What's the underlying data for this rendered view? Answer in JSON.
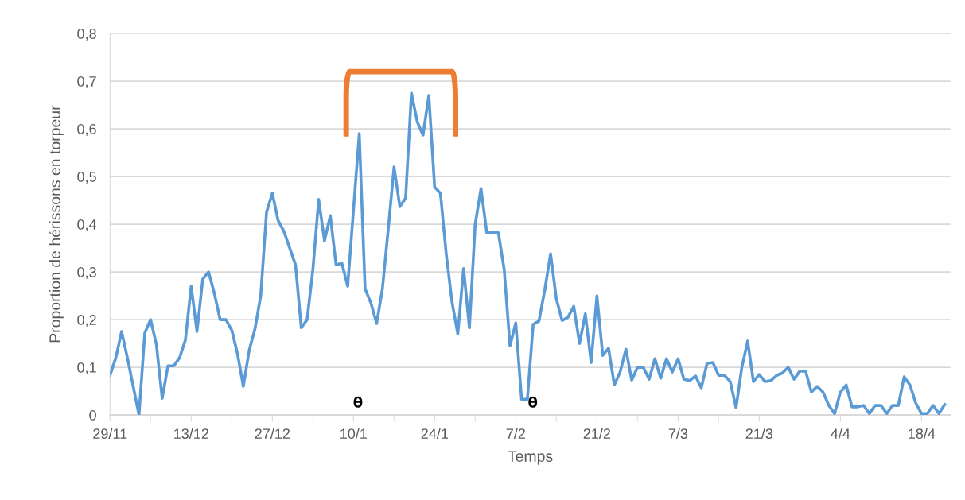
{
  "chart_data": {
    "type": "line",
    "xlabel": "Temps",
    "ylabel": "Proportion de hérissons en torpeur",
    "categories": [
      "29/11",
      null,
      null,
      null,
      null,
      null,
      null,
      null,
      null,
      null,
      null,
      null,
      null,
      null,
      "13/12",
      null,
      null,
      null,
      null,
      null,
      null,
      null,
      null,
      null,
      null,
      null,
      null,
      null,
      "27/12",
      null,
      null,
      null,
      null,
      null,
      null,
      null,
      null,
      null,
      null,
      null,
      null,
      null,
      "10/1",
      null,
      null,
      null,
      null,
      null,
      null,
      null,
      null,
      null,
      null,
      null,
      null,
      null,
      "24/1",
      null,
      null,
      null,
      null,
      null,
      null,
      null,
      null,
      null,
      null,
      null,
      null,
      null,
      "7/2",
      null,
      null,
      null,
      null,
      null,
      null,
      null,
      null,
      null,
      null,
      null,
      null,
      null,
      "21/2",
      null,
      null,
      null,
      null,
      null,
      null,
      null,
      null,
      null,
      null,
      null,
      null,
      null,
      "7/3",
      null,
      null,
      null,
      null,
      null,
      null,
      null,
      null,
      null,
      null,
      null,
      null,
      null,
      "21/3",
      null,
      null,
      null,
      null,
      null,
      null,
      null,
      null,
      null,
      null,
      null,
      null,
      null,
      "4/4",
      null,
      null,
      null,
      null,
      null,
      null,
      null,
      null,
      null,
      null,
      null,
      null,
      null,
      "18/4",
      null,
      null,
      null,
      null
    ],
    "series": [
      {
        "color": "#5b9bd5",
        "values": [
          0.083,
          0.12,
          0.175,
          0.12,
          0.06,
          0,
          0.172,
          0.2,
          0.148,
          0.035,
          0.103,
          0.103,
          0.12,
          0.157,
          0.27,
          0.175,
          0.285,
          0.3,
          0.255,
          0.2,
          0.2,
          0.178,
          0.128,
          0.06,
          0.135,
          0.18,
          0.25,
          0.425,
          0.465,
          0.408,
          0.385,
          0.35,
          0.315,
          0.183,
          0.2,
          0.305,
          0.452,
          0.365,
          0.418,
          0.315,
          0.318,
          0.27,
          0.43,
          0.59,
          0.265,
          0.235,
          0.192,
          0.265,
          0.39,
          0.52,
          0.437,
          0.455,
          0.675,
          0.615,
          0.587,
          0.67,
          0.478,
          0.465,
          0.338,
          0.237,
          0.17,
          0.307,
          0.183,
          0.4,
          0.475,
          0.382,
          0.382,
          0.382,
          0.305,
          0.145,
          0.193,
          0.033,
          0.033,
          0.19,
          0.197,
          0.262,
          0.338,
          0.243,
          0.198,
          0.205,
          0.228,
          0.15,
          0.212,
          0.11,
          0.25,
          0.125,
          0.14,
          0.063,
          0.09,
          0.138,
          0.073,
          0.1,
          0.1,
          0.075,
          0.118,
          0.077,
          0.118,
          0.09,
          0.118,
          0.075,
          0.072,
          0.082,
          0.057,
          0.108,
          0.11,
          0.083,
          0.083,
          0.07,
          0.015,
          0.1,
          0.155,
          0.07,
          0.085,
          0.07,
          0.072,
          0.083,
          0.088,
          0.1,
          0.075,
          0.092,
          0.092,
          0.048,
          0.06,
          0.048,
          0.02,
          0.003,
          0.048,
          0.063,
          0.017,
          0.017,
          0.02,
          0.003,
          0.02,
          0.02,
          0.003,
          0.02,
          0.02,
          0.08,
          0.063,
          0.025,
          0.003,
          0.003,
          0.02,
          0.003,
          0.022
        ]
      }
    ],
    "ylim": [
      0,
      0.8
    ],
    "yticks": [
      {
        "value": 0,
        "label": "0"
      },
      {
        "value": 0.1,
        "label": "0,1"
      },
      {
        "value": 0.2,
        "label": "0,2"
      },
      {
        "value": 0.3,
        "label": "0,3"
      },
      {
        "value": 0.4,
        "label": "0,4"
      },
      {
        "value": 0.5,
        "label": "0,5"
      },
      {
        "value": 0.6,
        "label": "0,6"
      },
      {
        "value": 0.7,
        "label": "0,7"
      },
      {
        "value": 0.8,
        "label": "0,8"
      }
    ],
    "grid": "y",
    "annotations": [
      "θ",
      "θ"
    ]
  }
}
